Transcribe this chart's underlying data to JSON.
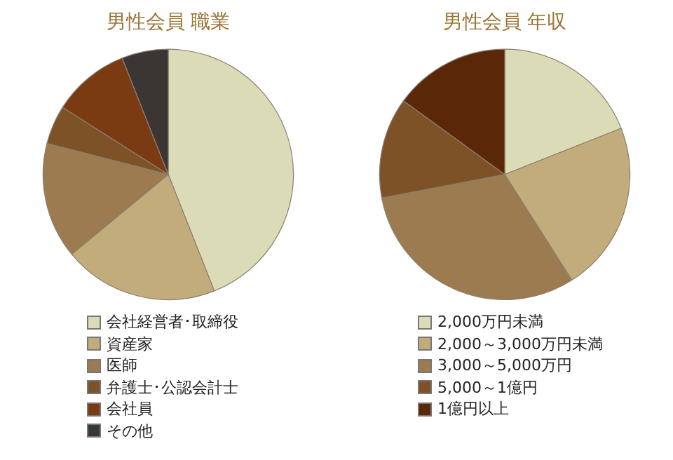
{
  "chart_data": [
    {
      "type": "pie",
      "title": "男性会員 職業",
      "categories": [
        "会社経営者･取締役",
        "資産家",
        "医師",
        "弁護士･公認会計士",
        "会社員",
        "その他"
      ],
      "values": [
        44,
        20,
        15,
        5,
        10,
        6
      ],
      "colors": [
        "#dcdbb8",
        "#c3ac7c",
        "#9d7b50",
        "#7d5227",
        "#7a3a12",
        "#3b3633"
      ],
      "legend": "bottom"
    },
    {
      "type": "pie",
      "title": "男性会員 年収",
      "categories": [
        "2,000万円未満",
        "2,000～3,000万円未満",
        "3,000～5,000万円",
        "5,000～1億円",
        "1億円以上"
      ],
      "values": [
        19,
        22,
        31,
        13,
        15
      ],
      "colors": [
        "#dcdbb8",
        "#c3ac7c",
        "#9d7b50",
        "#7d5227",
        "#5a2808"
      ],
      "legend": "bottom"
    }
  ]
}
